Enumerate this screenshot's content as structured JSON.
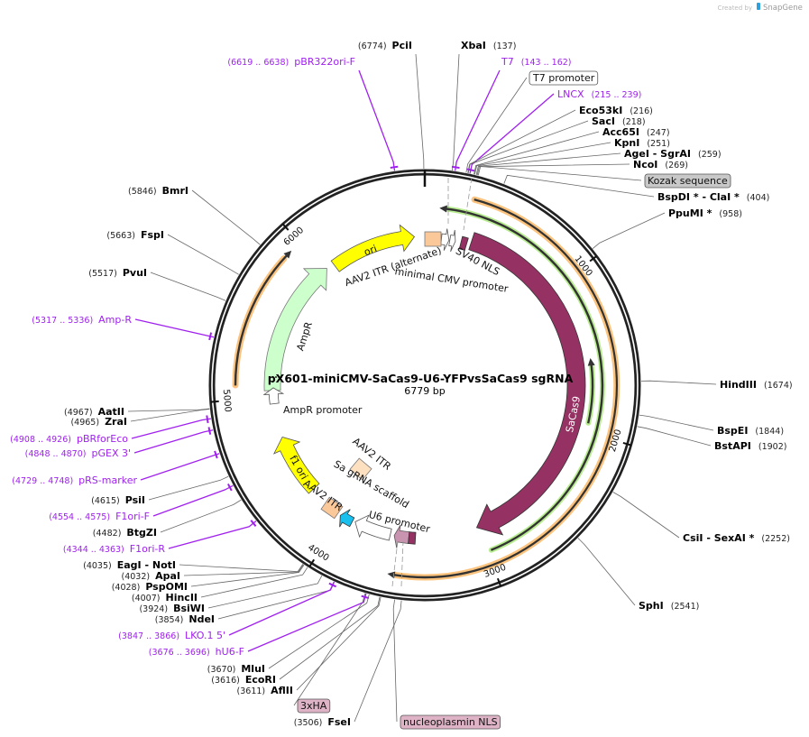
{
  "credit": {
    "prefix": "Created by",
    "brand": "SnapGene"
  },
  "plasmid": {
    "name": "pX601-miniCMV-SaCas9-U6-YFPvsSaCas9 sgRNA",
    "length": "6779 bp",
    "total_bp": 6779
  },
  "ticks": [
    "1000",
    "2000",
    "3000",
    "4000",
    "5000",
    "6000"
  ],
  "features": {
    "sacas9": "SaCas9",
    "ori": "ori",
    "ampr": "AmpR",
    "ampr_promoter": "AmpR promoter",
    "f1_ori": "f1 ori",
    "aav2_itr_alt": "AAV2 ITR (alternate)",
    "min_cmv": "minimal CMV promoter",
    "sv40_nls": "SV40 NLS",
    "aav2_itr_1": "AAV2 ITR",
    "aav2_itr_2": "AAV2 ITR",
    "sa_grna": "Sa gRNA scaffold",
    "u6": "U6 promoter"
  },
  "sites": [
    {
      "name": "PciI",
      "pos": "6774",
      "bp": 6774,
      "type": "enzyme"
    },
    {
      "name": "XbaI",
      "pos": "137",
      "bp": 137,
      "type": "enzyme"
    },
    {
      "name": "pBR322ori-F",
      "pos": "6619 .. 6638",
      "bp": 6628,
      "type": "primer"
    },
    {
      "name": "T7",
      "pos": "143 .. 162",
      "bp": 152,
      "type": "primer"
    },
    {
      "name": "T7 promoter",
      "type": "box"
    },
    {
      "name": "LNCX",
      "pos": "215 .. 239",
      "bp": 227,
      "type": "primer"
    },
    {
      "name": "Eco53kI",
      "pos": "216",
      "bp": 216,
      "type": "enzyme"
    },
    {
      "name": "SacI",
      "pos": "218",
      "bp": 218,
      "type": "enzyme"
    },
    {
      "name": "Acc65I",
      "pos": "247",
      "bp": 247,
      "type": "enzyme"
    },
    {
      "name": "KpnI",
      "pos": "251",
      "bp": 251,
      "type": "enzyme"
    },
    {
      "name": "AgeI  - SgrAI",
      "pos": "259",
      "bp": 259,
      "type": "enzyme"
    },
    {
      "name": "NcoI",
      "pos": "269",
      "bp": 269,
      "type": "enzyme"
    },
    {
      "name": "Kozak sequence",
      "type": "box"
    },
    {
      "name": "BspDI * - ClaI *",
      "pos": "404",
      "bp": 404,
      "type": "enzyme"
    },
    {
      "name": "PpuMI *",
      "pos": "958",
      "bp": 958,
      "type": "enzyme"
    },
    {
      "name": "HindIII",
      "pos": "1674",
      "bp": 1674,
      "type": "enzyme"
    },
    {
      "name": "BspEI",
      "pos": "1844",
      "bp": 1844,
      "type": "enzyme"
    },
    {
      "name": "BstAPI",
      "pos": "1902",
      "bp": 1902,
      "type": "enzyme"
    },
    {
      "name": "CsiI  - SexAI *",
      "pos": "2252",
      "bp": 2252,
      "type": "enzyme"
    },
    {
      "name": "SphI",
      "pos": "2541",
      "bp": 2541,
      "type": "enzyme"
    },
    {
      "name": "BmrI",
      "pos": "5846",
      "bp": 5846,
      "type": "enzyme"
    },
    {
      "name": "FspI",
      "pos": "5663",
      "bp": 5663,
      "type": "enzyme"
    },
    {
      "name": "PvuI",
      "pos": "5517",
      "bp": 5517,
      "type": "enzyme"
    },
    {
      "name": "Amp-R",
      "pos": "5317 .. 5336",
      "bp": 5326,
      "type": "primer"
    },
    {
      "name": "AatII",
      "pos": "4967",
      "bp": 4967,
      "type": "enzyme"
    },
    {
      "name": "ZraI",
      "pos": "4965",
      "bp": 4965,
      "type": "enzyme"
    },
    {
      "name": "pBRforEco",
      "pos": "4908 .. 4926",
      "bp": 4917,
      "type": "primer"
    },
    {
      "name": "pGEX 3'",
      "pos": "4848 .. 4870",
      "bp": 4859,
      "type": "primer"
    },
    {
      "name": "pRS-marker",
      "pos": "4729 .. 4748",
      "bp": 4738,
      "type": "primer"
    },
    {
      "name": "PsiI",
      "pos": "4615",
      "bp": 4615,
      "type": "enzyme"
    },
    {
      "name": "F1ori-F",
      "pos": "4554 .. 4575",
      "bp": 4564,
      "type": "primer"
    },
    {
      "name": "BtgZI",
      "pos": "4482",
      "bp": 4482,
      "type": "enzyme"
    },
    {
      "name": "F1ori-R",
      "pos": "4344 .. 4363",
      "bp": 4353,
      "type": "primer"
    },
    {
      "name": "EagI  - NotI",
      "pos": "4035",
      "bp": 4035,
      "type": "enzyme"
    },
    {
      "name": "ApaI",
      "pos": "4032",
      "bp": 4032,
      "type": "enzyme"
    },
    {
      "name": "PspOMI",
      "pos": "4028",
      "bp": 4028,
      "type": "enzyme"
    },
    {
      "name": "HincII",
      "pos": "4007",
      "bp": 4007,
      "type": "enzyme"
    },
    {
      "name": "BsiWI",
      "pos": "3924",
      "bp": 3924,
      "type": "enzyme"
    },
    {
      "name": "NdeI",
      "pos": "3854",
      "bp": 3854,
      "type": "enzyme"
    },
    {
      "name": "LKO.1 5'",
      "pos": "3847 .. 3866",
      "bp": 3856,
      "type": "primer"
    },
    {
      "name": "hU6-F",
      "pos": "3676 .. 3696",
      "bp": 3686,
      "type": "primer"
    },
    {
      "name": "MluI",
      "pos": "3670",
      "bp": 3670,
      "type": "enzyme"
    },
    {
      "name": "EcoRI",
      "pos": "3616",
      "bp": 3616,
      "type": "enzyme"
    },
    {
      "name": "AflII",
      "pos": "3611",
      "bp": 3611,
      "type": "enzyme"
    },
    {
      "name": "3xHA",
      "type": "box"
    },
    {
      "name": "FseI",
      "pos": "3506",
      "bp": 3506,
      "type": "enzyme"
    },
    {
      "name": "nucleoplasmin NLS",
      "type": "box"
    }
  ],
  "colors": {
    "sacas9": "#953263",
    "ori": "#ffff00",
    "ampr": "#ccffcc",
    "itr": "#fbc89a",
    "itr_light": "#fde0c0",
    "orange_arc": "#fbc37d",
    "green_arc": "#b8ec90",
    "primer": "#a020f0",
    "blue": "#19c0ee",
    "pink": "#c994b0",
    "box_grey": "#c8c8c8",
    "box_pink": "#deb3c6",
    "brand": "#2ea0dc"
  }
}
